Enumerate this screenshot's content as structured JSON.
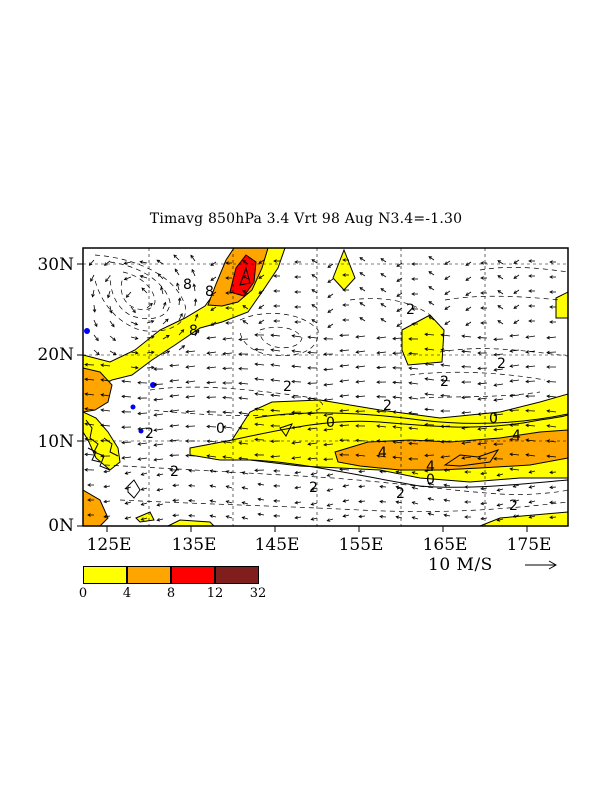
{
  "map": {
    "title": "Timavg 850hPa 3.4 Vrt 98 Aug N3.4=-1.30",
    "lat_labels": [
      "30N",
      "20N",
      "10N",
      "0N"
    ],
    "lon_labels": [
      "125E",
      "135E",
      "145E",
      "155E",
      "165E",
      "175E"
    ],
    "extent": {
      "lon_min": 122,
      "lon_max": 180,
      "lat_min": 0,
      "lat_max": 32
    },
    "reference_vector": {
      "label": "10 M/S",
      "value": 10
    },
    "contour_labels": [
      "8",
      "8",
      "8",
      "2",
      "2",
      "2",
      "2",
      "2",
      "2",
      "0",
      "0",
      "0",
      "4",
      "4",
      "4",
      "2",
      "2",
      "2",
      "0",
      "2"
    ],
    "colors": {
      "yellow": "#ffff00",
      "orange": "#ffa500",
      "red": "#ff0000",
      "darkred": "#801e1e",
      "land": "#0000ff"
    }
  },
  "legend": {
    "bins": [
      {
        "color": "#ffff00"
      },
      {
        "color": "#ffa500"
      },
      {
        "color": "#ff0000"
      },
      {
        "color": "#801e1e"
      }
    ],
    "labels": [
      "0",
      "4",
      "8",
      "12",
      "32"
    ]
  }
}
